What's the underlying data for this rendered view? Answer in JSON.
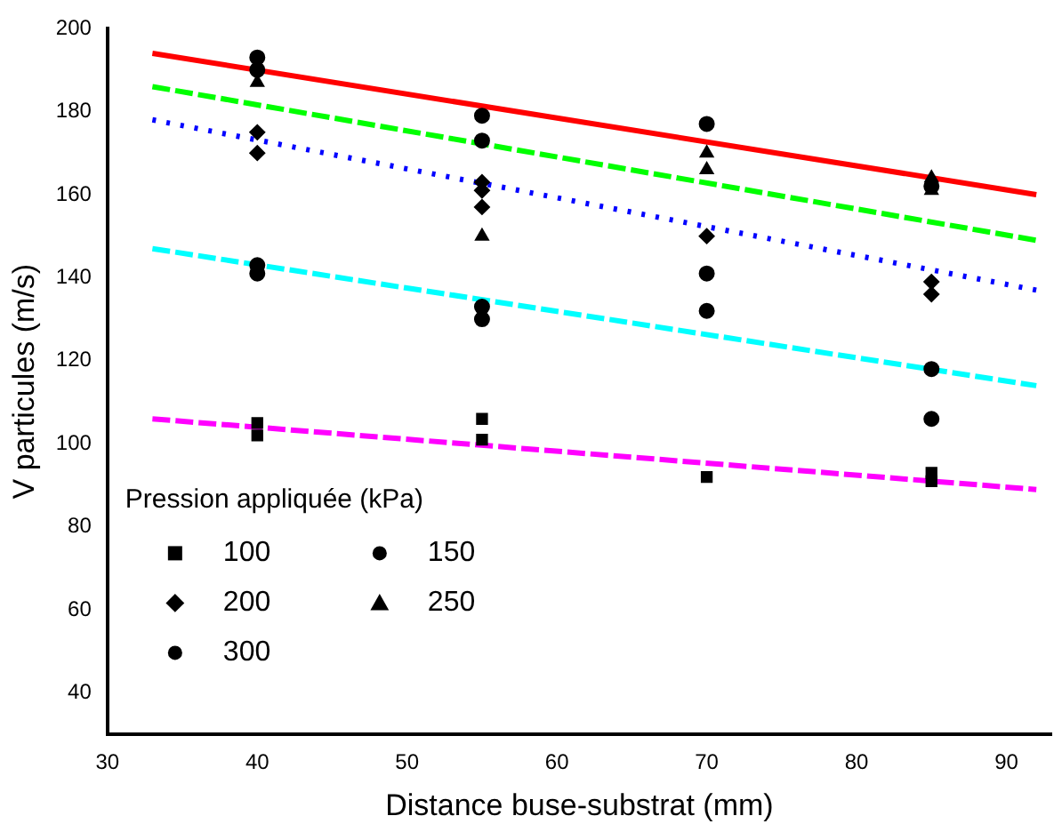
{
  "chart_data": {
    "type": "scatter",
    "xlabel": "Distance buse-substrat (mm)",
    "ylabel": "V particules (m/s)",
    "legend_title": "Pression appliquée (kPa)",
    "legend": "bottom left",
    "grid": false,
    "xlim": [
      30,
      93
    ],
    "xticks": [
      30,
      40,
      50,
      60,
      70,
      80,
      90
    ],
    "ylim": [
      30,
      200
    ],
    "yticks": [
      40,
      60,
      80,
      100,
      120,
      140,
      160,
      180,
      200
    ],
    "series": [
      {
        "name": "100",
        "type": "scatter",
        "marker": "square",
        "color": "#000000",
        "x": [
          40,
          40,
          55,
          55,
          70,
          85,
          85
        ],
        "values": [
          105,
          102,
          106,
          101,
          92,
          93,
          91
        ]
      },
      {
        "name": "150",
        "type": "scatter",
        "marker": "circle",
        "color": "#000000",
        "x": [
          40,
          40,
          55,
          55,
          70,
          70,
          85,
          85
        ],
        "values": [
          143,
          141,
          133,
          130,
          141,
          132,
          118,
          106
        ]
      },
      {
        "name": "200",
        "type": "scatter",
        "marker": "diamond",
        "color": "#000000",
        "x": [
          40,
          40,
          55,
          55,
          55,
          70,
          85,
          85
        ],
        "values": [
          175,
          170,
          163,
          161,
          157,
          150,
          139,
          136
        ]
      },
      {
        "name": "250",
        "type": "scatter",
        "marker": "triangle",
        "color": "#000000",
        "x": [
          40,
          55,
          70,
          70,
          85,
          85
        ],
        "values": [
          187,
          150,
          170,
          166,
          164,
          161
        ]
      },
      {
        "name": "300",
        "type": "scatter",
        "marker": "circle",
        "color": "#000000",
        "x": [
          40,
          40,
          55,
          55,
          70,
          85
        ],
        "values": [
          193,
          190,
          179,
          173,
          177,
          162
        ]
      },
      {
        "type": "line",
        "line_style": "solid",
        "color": "#ff0000",
        "x": [
          33,
          92
        ],
        "values": [
          194,
          160
        ]
      },
      {
        "type": "line",
        "line_style": "dashed",
        "color": "#00ff00",
        "x": [
          33,
          92
        ],
        "values": [
          186,
          149
        ]
      },
      {
        "type": "line",
        "line_style": "dotted",
        "color": "#0000ff",
        "x": [
          33,
          92
        ],
        "values": [
          178,
          137
        ]
      },
      {
        "type": "line",
        "line_style": "dashed",
        "color": "#00ffff",
        "x": [
          33,
          92
        ],
        "values": [
          147,
          114
        ]
      },
      {
        "type": "line",
        "line_style": "dashed",
        "color": "#ff00ff",
        "x": [
          33,
          92
        ],
        "values": [
          106,
          89
        ]
      }
    ]
  }
}
